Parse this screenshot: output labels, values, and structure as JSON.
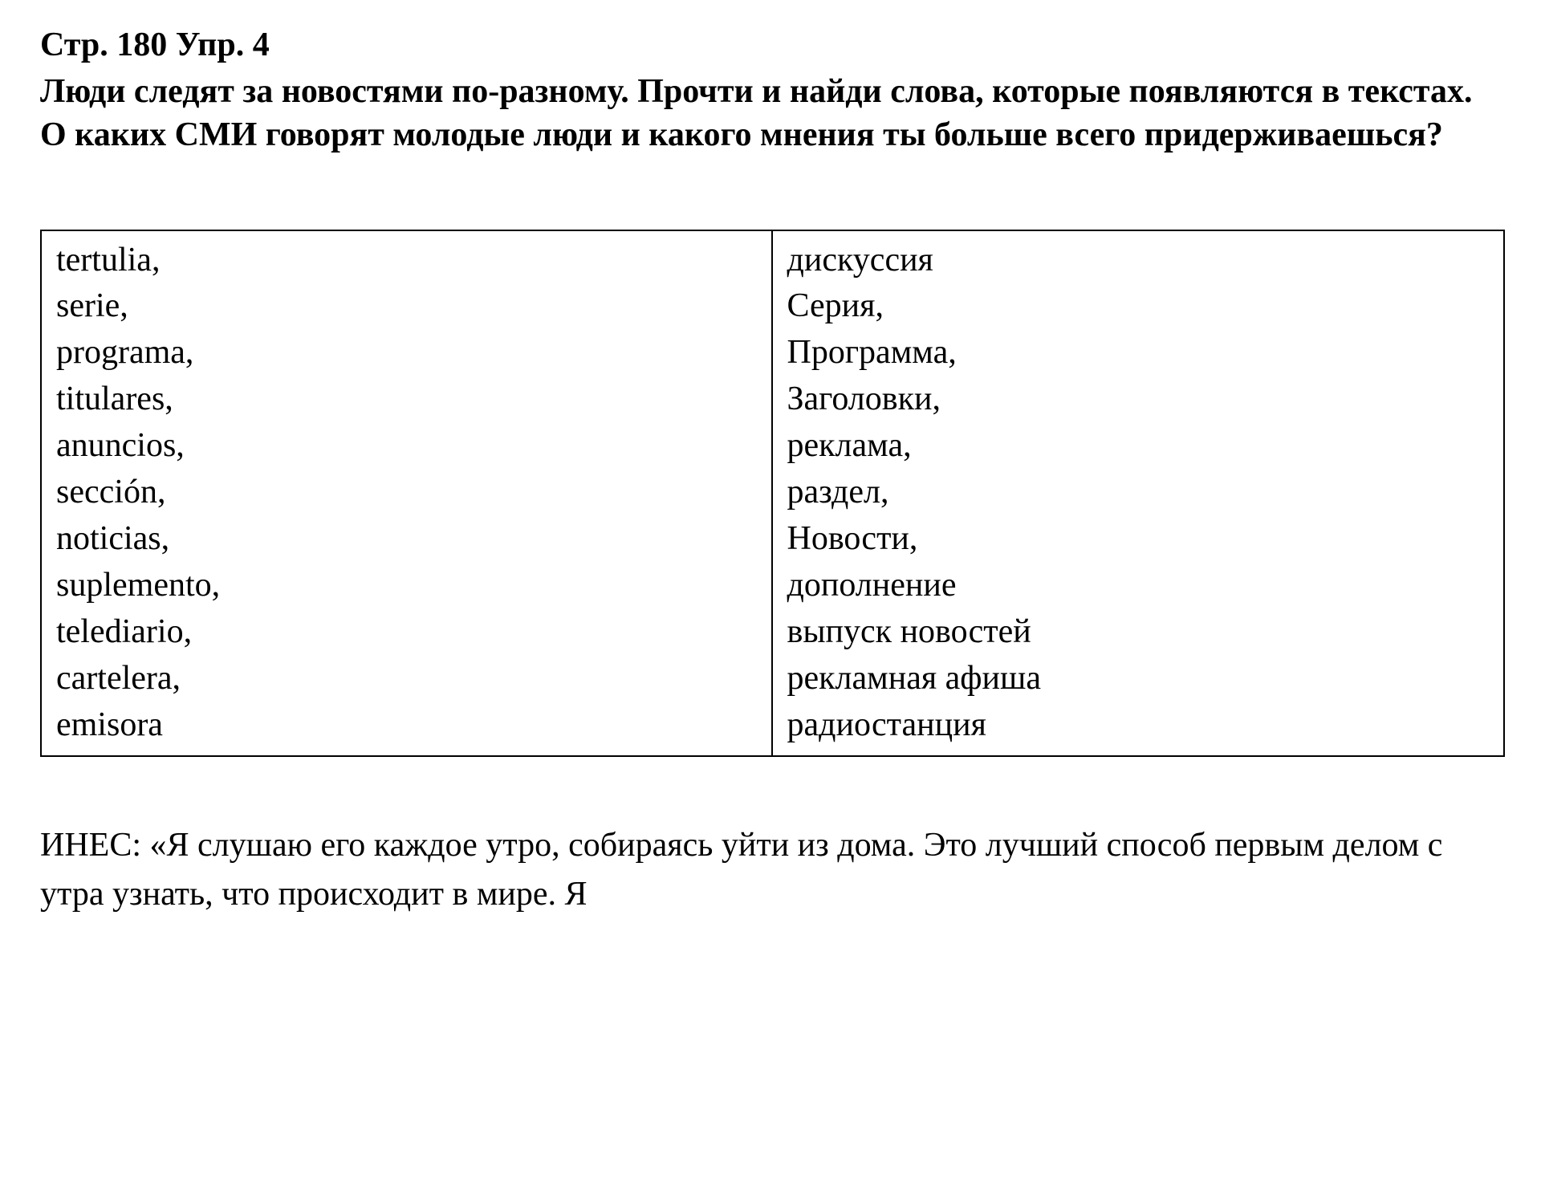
{
  "header": {
    "page_ref": "Стр. 180 Упр. 4"
  },
  "instruction": {
    "text": "Люди следят за новостями по-разному. Прочти и найди слова, которые появляются в текстах. О каких СМИ говорят молодые люди и какого мнения ты больше всего придерживаешься?"
  },
  "table": {
    "left": [
      "tertulia,",
      "serie,",
      "programa,",
      "titulares,",
      "anuncios,",
      "sección,",
      "noticias,",
      "suplemento,",
      "telediario,",
      "cartelera,",
      "emisora"
    ],
    "right": [
      "дискуссия",
      "Серия,",
      "Программа,",
      "Заголовки,",
      "реклама,",
      "раздел,",
      "Новости,",
      "дополнение",
      "выпуск новостей",
      "рекламная афиша",
      "радиостанция"
    ]
  },
  "body": {
    "speaker": "ИНЕС:",
    "quote": " «Я слушаю его каждое утро, собираясь уйти из дома. Это лучший способ первым делом с утра узнать, что происходит в мире. Я"
  }
}
